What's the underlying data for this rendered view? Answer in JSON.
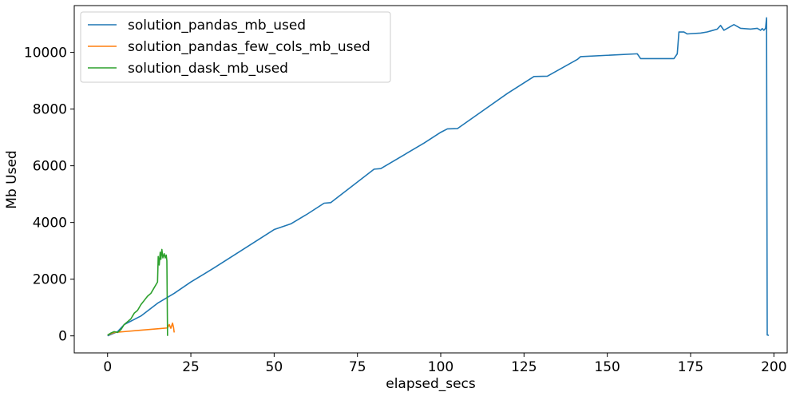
{
  "chart_data": {
    "type": "line",
    "xlabel": "elapsed_secs",
    "ylabel": "Mb Used",
    "xlim": [
      -10,
      204
    ],
    "ylim": [
      -600,
      11650
    ],
    "xticks": [
      0,
      25,
      50,
      75,
      100,
      125,
      150,
      175,
      200
    ],
    "yticks": [
      0,
      2000,
      4000,
      6000,
      8000,
      10000
    ],
    "grid": false,
    "legend_position": "top-left",
    "series": [
      {
        "name": "solution_pandas_mb_used",
        "color": "#1f77b4",
        "points": [
          [
            0,
            0
          ],
          [
            3,
            150
          ],
          [
            5,
            400
          ],
          [
            10,
            700
          ],
          [
            15,
            1150
          ],
          [
            20,
            1500
          ],
          [
            25,
            1900
          ],
          [
            32,
            2400
          ],
          [
            40,
            3000
          ],
          [
            50,
            3750
          ],
          [
            55,
            3950
          ],
          [
            60,
            4300
          ],
          [
            65,
            4680
          ],
          [
            67,
            4700
          ],
          [
            80,
            5880
          ],
          [
            82,
            5900
          ],
          [
            95,
            6800
          ],
          [
            100,
            7180
          ],
          [
            102,
            7300
          ],
          [
            105,
            7310
          ],
          [
            120,
            8550
          ],
          [
            128,
            9150
          ],
          [
            132,
            9160
          ],
          [
            141,
            9750
          ],
          [
            142,
            9850
          ],
          [
            159,
            9950
          ],
          [
            160,
            9780
          ],
          [
            170,
            9780
          ],
          [
            171,
            9950
          ],
          [
            171.5,
            10720
          ],
          [
            173,
            10720
          ],
          [
            174,
            10650
          ],
          [
            178,
            10680
          ],
          [
            180,
            10720
          ],
          [
            183,
            10820
          ],
          [
            184,
            10950
          ],
          [
            185,
            10780
          ],
          [
            188,
            10980
          ],
          [
            190,
            10850
          ],
          [
            193,
            10820
          ],
          [
            195,
            10850
          ],
          [
            196,
            10780
          ],
          [
            196.5,
            10840
          ],
          [
            197,
            10780
          ],
          [
            197.5,
            10850
          ],
          [
            197.8,
            11220
          ],
          [
            198,
            30
          ],
          [
            198.5,
            20
          ]
        ]
      },
      {
        "name": "solution_pandas_few_cols_mb_used",
        "color": "#ff7f0e",
        "points": [
          [
            0,
            30
          ],
          [
            2,
            120
          ],
          [
            5,
            150
          ],
          [
            10,
            200
          ],
          [
            15,
            250
          ],
          [
            18,
            280
          ],
          [
            18.5,
            400
          ],
          [
            19,
            270
          ],
          [
            19.5,
            450
          ],
          [
            19.8,
            300
          ],
          [
            20,
            120
          ]
        ]
      },
      {
        "name": "solution_dask_mb_used",
        "color": "#2ca02c",
        "points": [
          [
            0,
            30
          ],
          [
            1,
            100
          ],
          [
            2,
            150
          ],
          [
            3,
            120
          ],
          [
            4,
            220
          ],
          [
            5,
            400
          ],
          [
            6,
            500
          ],
          [
            7,
            600
          ],
          [
            8,
            800
          ],
          [
            9,
            900
          ],
          [
            10,
            1100
          ],
          [
            11,
            1250
          ],
          [
            12,
            1400
          ],
          [
            13,
            1500
          ],
          [
            14,
            1700
          ],
          [
            15,
            1900
          ],
          [
            15.2,
            2800
          ],
          [
            15.5,
            2500
          ],
          [
            15.8,
            2950
          ],
          [
            16,
            2700
          ],
          [
            16.3,
            3050
          ],
          [
            16.6,
            2750
          ],
          [
            17,
            2900
          ],
          [
            17.3,
            2750
          ],
          [
            17.6,
            2850
          ],
          [
            17.8,
            2650
          ],
          [
            18,
            0
          ]
        ]
      }
    ]
  }
}
